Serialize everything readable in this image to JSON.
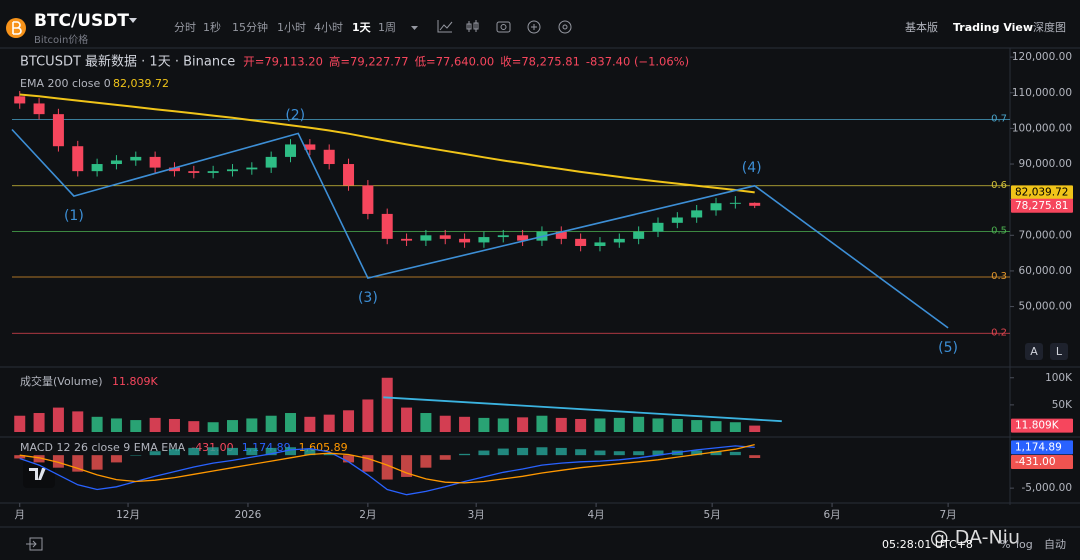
{
  "header": {
    "symbol": "BTC/USDT",
    "subtitle": "Bitcoin价格"
  },
  "toolbar": {
    "intervals": [
      "分时",
      "1秒",
      "15分钟",
      "1小时",
      "4小时",
      "1天",
      "1周"
    ],
    "active": 5,
    "views": [
      "基本版",
      "Trading View",
      "深度图"
    ],
    "active_view": 1
  },
  "legend": {
    "title": "BTCUSDT 最新数据 · 1天 · Binance",
    "ohlc": [
      "开=79,113.20",
      "高=79,227.77",
      "低=77,640.00",
      "收=78,275.81",
      "-837.40 (−1.06%)"
    ]
  },
  "chart_data": [
    {
      "type": "candlestick",
      "x": [
        2,
        7,
        12,
        17,
        22,
        27,
        32,
        37,
        42,
        47,
        52,
        57,
        62,
        67,
        72,
        77,
        82,
        87,
        92,
        97,
        102,
        107,
        112,
        117,
        122,
        127,
        132,
        137,
        142,
        147,
        152,
        157,
        162,
        167,
        172,
        177,
        182,
        187,
        192
      ],
      "open": [
        109000,
        107000,
        104000,
        95000,
        88000,
        90000,
        91000,
        92000,
        89000,
        88000,
        87500,
        88000,
        88500,
        89000,
        92000,
        95500,
        94000,
        90000,
        84000,
        76000,
        69000,
        68500,
        70000,
        69000,
        68000,
        69500,
        70000,
        68500,
        71000,
        69000,
        67000,
        68000,
        69000,
        71000,
        73500,
        75000,
        77000,
        79000,
        79113.2
      ],
      "high": [
        110500,
        108500,
        105500,
        96500,
        91500,
        92500,
        93500,
        93500,
        90500,
        89500,
        89500,
        90000,
        90500,
        93500,
        97000,
        97000,
        95500,
        91500,
        85500,
        77500,
        70500,
        71500,
        71500,
        70500,
        71000,
        71500,
        71500,
        72500,
        72500,
        70500,
        69500,
        70500,
        72500,
        75000,
        76500,
        78500,
        80500,
        81000,
        79227.77
      ],
      "low": [
        105500,
        102500,
        93500,
        86500,
        86500,
        88500,
        89500,
        87500,
        86500,
        86000,
        86000,
        86500,
        87000,
        87500,
        90500,
        92500,
        88500,
        82500,
        74500,
        67500,
        67000,
        67000,
        67500,
        66500,
        66500,
        68000,
        67000,
        67000,
        67500,
        65500,
        65500,
        66500,
        67500,
        69500,
        72000,
        73500,
        75500,
        77500,
        77640
      ],
      "close": [
        107000,
        104000,
        95000,
        88000,
        90000,
        91000,
        92000,
        89000,
        88000,
        87500,
        88000,
        88500,
        89000,
        92000,
        95500,
        94000,
        90000,
        84000,
        76000,
        69000,
        68500,
        70000,
        69000,
        68000,
        69500,
        70000,
        68500,
        71000,
        69000,
        67000,
        68000,
        69000,
        71000,
        73500,
        75000,
        77000,
        79000,
        79113.2,
        78275.81
      ],
      "close_label": "78,275.81",
      "up_color": "#2ebd85",
      "down_color": "#f6465d",
      "ema": {
        "name": "EMA 200 close 0",
        "color": "#f0c419",
        "value_label": "82,039.72",
        "values": [
          109500,
          109000,
          108400,
          107800,
          107200,
          106600,
          106000,
          105400,
          104800,
          104200,
          103600,
          103000,
          102300,
          101600,
          100900,
          100200,
          99400,
          98500,
          97500,
          96500,
          95500,
          94600,
          93700,
          92800,
          91900,
          91000,
          90200,
          89400,
          88600,
          87800,
          87100,
          86400,
          85700,
          85100,
          84500,
          83900,
          83300,
          82700,
          82039.72
        ]
      },
      "levels": [
        {
          "label": "0.7",
          "value": 102500,
          "color": "#4aa3c9"
        },
        {
          "label": "0.6",
          "value": 83900,
          "color": "#d4c33a"
        },
        {
          "label": "0.5",
          "value": 71100,
          "color": "#4caf50"
        },
        {
          "label": "0.3",
          "value": 58300,
          "color": "#e0962c"
        },
        {
          "label": "0.2",
          "value": 42500,
          "color": "#e0454f"
        }
      ],
      "wave": {
        "color": "#3d8fd6",
        "x": [
          0,
          16,
          74,
          92,
          192,
          242
        ],
        "values": [
          99700,
          81000,
          98600,
          58000,
          83900,
          44000
        ],
        "labels": [
          null,
          "(1)",
          "(2)",
          "(3)",
          "(4)",
          "(5)"
        ]
      },
      "xlim": [
        0,
        258
      ],
      "xticks": [
        {
          "value": 2,
          "label": "月"
        },
        {
          "value": 30,
          "label": "12月"
        },
        {
          "value": 61,
          "label": "2026"
        },
        {
          "value": 92,
          "label": "2月"
        },
        {
          "value": 120,
          "label": "3月"
        },
        {
          "value": 151,
          "label": "4月"
        },
        {
          "value": 181,
          "label": "5月"
        },
        {
          "value": 212,
          "label": "6月"
        },
        {
          "value": 242,
          "label": "7月"
        }
      ],
      "ylim": [
        33600,
        122000
      ],
      "yticks": [
        {
          "value": 50000,
          "label": "50,000.00"
        },
        {
          "value": 60000,
          "label": "60,000.00"
        },
        {
          "value": 70000,
          "label": "70,000.00"
        },
        {
          "value": 80000,
          "label": "80,000.00"
        },
        {
          "value": 90000,
          "label": "90,000.00"
        },
        {
          "value": 100000,
          "label": "100,000.00"
        },
        {
          "value": 110000,
          "label": "110,000.00"
        },
        {
          "value": 120000,
          "label": "120,000.00"
        }
      ]
    },
    {
      "type": "bar",
      "title": "成交量(Volume)",
      "values": [
        30000,
        35000,
        45000,
        38000,
        28000,
        25000,
        22000,
        26000,
        24000,
        20000,
        18000,
        22000,
        25000,
        30000,
        35000,
        28000,
        32000,
        40000,
        60000,
        100000,
        45000,
        35000,
        30000,
        28000,
        26000,
        25000,
        27000,
        30000,
        26000,
        24000,
        25000,
        26000,
        28000,
        25000,
        24000,
        22000,
        20000,
        18000,
        11809
      ],
      "value_label": "11.809K",
      "trend": {
        "color": "#3bb3e0",
        "x": [
          96,
          199
        ],
        "values": [
          64000,
          20000
        ]
      },
      "ylim": [
        0,
        118000
      ],
      "yticks": [
        {
          "value": 50000,
          "label": "50K"
        },
        {
          "value": 100000,
          "label": "100K"
        }
      ]
    },
    {
      "type": "line",
      "title": "MACD 12 26 close 9 EMA EMA",
      "histogram": {
        "up_color": "#26a69a",
        "down_color": "#ef5350",
        "value_label": "-431.00",
        "values": [
          -500,
          -1100,
          -1900,
          -2500,
          -2200,
          -1100,
          0,
          600,
          900,
          1100,
          1200,
          1100,
          1100,
          1100,
          1200,
          900,
          200,
          -1100,
          -2500,
          -3700,
          -3300,
          -1900,
          -700,
          200,
          700,
          1000,
          1100,
          1200,
          1100,
          900,
          700,
          600,
          600,
          700,
          700,
          700,
          600,
          500,
          -431
        ]
      },
      "series": [
        {
          "color": "#2962ff",
          "value_label": "1,174.89",
          "values": [
            -500,
            -1500,
            -3000,
            -4500,
            -5200,
            -4800,
            -4000,
            -3200,
            -2500,
            -1800,
            -1200,
            -800,
            -300,
            200,
            800,
            1000,
            500,
            -1000,
            -3000,
            -5200,
            -6000,
            -5500,
            -4800,
            -4000,
            -3300,
            -2600,
            -2100,
            -1500,
            -1200,
            -1000,
            -900,
            -700,
            -400,
            0,
            400,
            800,
            1100,
            1400,
            1174.89
          ]
        },
        {
          "color": "#ff9800",
          "value_label": "1,605.89",
          "values": [
            0,
            -400,
            -1100,
            -2000,
            -3000,
            -3700,
            -4000,
            -3800,
            -3400,
            -2900,
            -2400,
            -1900,
            -1400,
            -900,
            -400,
            100,
            300,
            100,
            -500,
            -1500,
            -2700,
            -3600,
            -4100,
            -4200,
            -4000,
            -3600,
            -3200,
            -2700,
            -2300,
            -1900,
            -1600,
            -1300,
            -1000,
            -700,
            -300,
            100,
            500,
            900,
            1605.89
          ]
        }
      ],
      "ylim": [
        -6800,
        2300
      ],
      "yticks": [
        {
          "value": -5000,
          "label": "-5,000.00"
        }
      ]
    }
  ],
  "pane_buttons": [
    "A",
    "L"
  ],
  "footer": {
    "time": "05:28:01 UTC+8",
    "options": [
      "%",
      "log",
      "自动"
    ]
  },
  "watermark": "@ DA-Niu"
}
